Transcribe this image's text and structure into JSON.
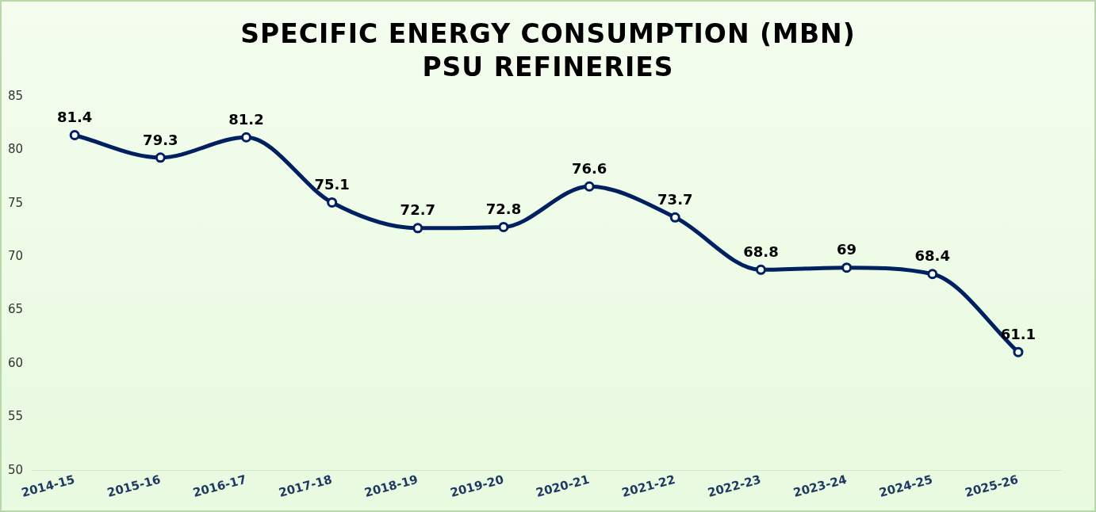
{
  "chart_data": {
    "type": "line",
    "title": "SPECIFIC ENERGY CONSUMPTION (MBN)\nPSU REFINERIES",
    "categories": [
      "2014-15",
      "2015-16",
      "2016-17",
      "2017-18",
      "2018-19",
      "2019-20",
      "2020-21",
      "2021-22",
      "2022-23",
      "2023-24",
      "2024-25",
      "2025-26"
    ],
    "values": [
      81.4,
      79.3,
      81.2,
      75.1,
      72.7,
      72.8,
      76.6,
      73.7,
      68.8,
      69,
      68.4,
      61.1
    ],
    "color": "#002060",
    "ylim": [
      50,
      85
    ],
    "yticks": [
      50,
      55,
      60,
      65,
      70,
      75,
      80,
      85
    ],
    "grid": false,
    "legend": false,
    "marker": "circle",
    "line_style": "solid",
    "data_labels": true
  }
}
